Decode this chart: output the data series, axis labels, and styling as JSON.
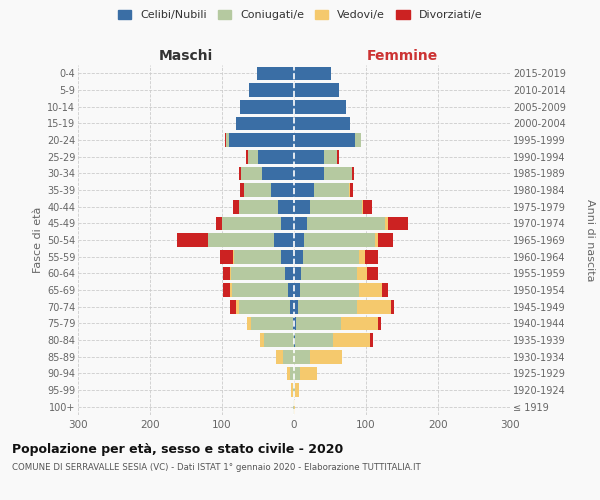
{
  "age_groups": [
    "100+",
    "95-99",
    "90-94",
    "85-89",
    "80-84",
    "75-79",
    "70-74",
    "65-69",
    "60-64",
    "55-59",
    "50-54",
    "45-49",
    "40-44",
    "35-39",
    "30-34",
    "25-29",
    "20-24",
    "15-19",
    "10-14",
    "5-9",
    "0-4"
  ],
  "birth_years": [
    "≤ 1919",
    "1920-1924",
    "1925-1929",
    "1930-1934",
    "1935-1939",
    "1940-1944",
    "1945-1949",
    "1950-1954",
    "1955-1959",
    "1960-1964",
    "1965-1969",
    "1970-1974",
    "1975-1979",
    "1980-1984",
    "1985-1989",
    "1990-1994",
    "1995-1999",
    "2000-2004",
    "2005-2009",
    "2010-2014",
    "2015-2019"
  ],
  "male_celibi": [
    0,
    0,
    0,
    0,
    0,
    2,
    5,
    8,
    12,
    18,
    28,
    18,
    22,
    32,
    45,
    50,
    90,
    80,
    75,
    63,
    52
  ],
  "male_coniugati": [
    1,
    2,
    5,
    15,
    42,
    58,
    72,
    78,
    75,
    65,
    92,
    82,
    55,
    38,
    28,
    14,
    4,
    0,
    0,
    0,
    0
  ],
  "male_vedovi": [
    0,
    2,
    5,
    10,
    5,
    5,
    4,
    3,
    2,
    2,
    0,
    0,
    0,
    0,
    0,
    0,
    0,
    0,
    0,
    0,
    0
  ],
  "male_divorziati": [
    0,
    0,
    0,
    0,
    0,
    0,
    8,
    10,
    10,
    18,
    42,
    8,
    8,
    5,
    3,
    2,
    2,
    0,
    0,
    0,
    0
  ],
  "female_nubili": [
    0,
    0,
    0,
    0,
    2,
    3,
    5,
    8,
    10,
    12,
    14,
    18,
    22,
    28,
    42,
    42,
    85,
    78,
    72,
    62,
    52
  ],
  "female_coniugate": [
    0,
    2,
    8,
    22,
    52,
    62,
    82,
    82,
    78,
    78,
    98,
    108,
    72,
    48,
    38,
    18,
    8,
    0,
    0,
    0,
    0
  ],
  "female_vedove": [
    1,
    5,
    24,
    44,
    52,
    52,
    48,
    32,
    14,
    8,
    4,
    4,
    2,
    2,
    0,
    0,
    0,
    0,
    0,
    0,
    0
  ],
  "female_divorziate": [
    0,
    0,
    0,
    0,
    4,
    4,
    4,
    8,
    14,
    18,
    22,
    28,
    12,
    4,
    4,
    2,
    0,
    0,
    0,
    0,
    0
  ],
  "c_celibi": "#3a6ea5",
  "c_coniugati": "#b5c9a0",
  "c_vedovi": "#f5c96d",
  "c_divorziati": "#cc2222",
  "xlim": 300,
  "title": "Popolazione per età, sesso e stato civile - 2020",
  "subtitle": "COMUNE DI SERRAVALLE SESIA (VC) - Dati ISTAT 1° gennaio 2020 - Elaborazione TUTTITALIA.IT",
  "ylabel_left": "Fasce di età",
  "ylabel_right": "Anni di nascita",
  "label_maschi": "Maschi",
  "label_femmine": "Femmine",
  "legend_labels": [
    "Celibi/Nubili",
    "Coniugati/e",
    "Vedovi/e",
    "Divorziati/e"
  ],
  "bg_color": "#f9f9f9",
  "grid_color": "#cccccc"
}
